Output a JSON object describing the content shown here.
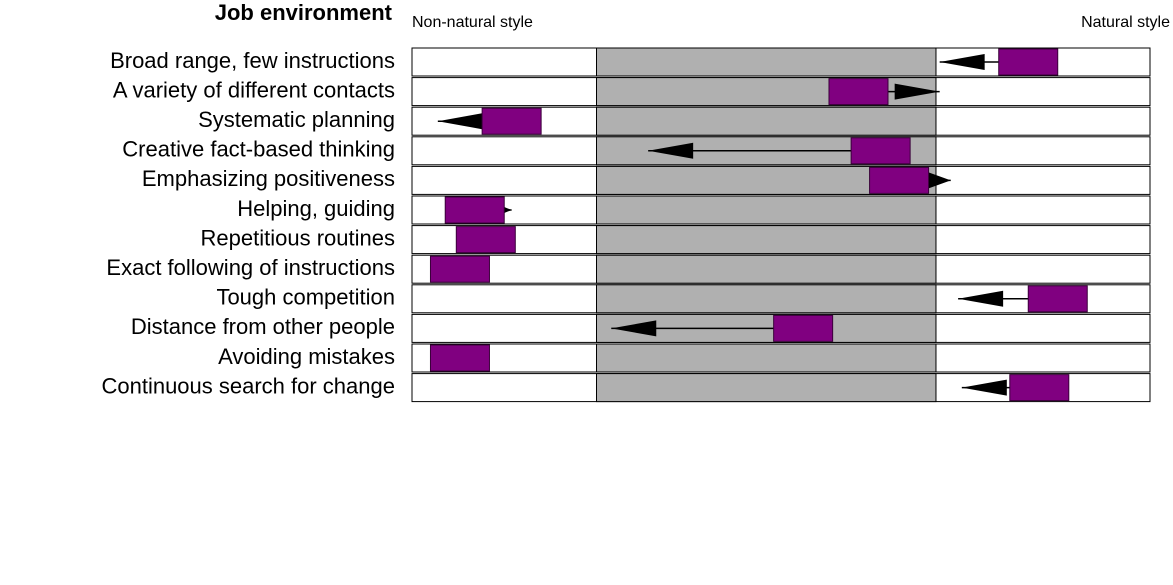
{
  "chart_data": {
    "type": "profile",
    "title": "Job environment",
    "left_label": "Non-natural style",
    "right_label": "Natural style",
    "categories": [
      "Broad range, few instructions",
      "A variety of different contacts",
      "Systematic planning",
      "Creative fact-based thinking",
      "Emphasizing positiveness",
      "Helping, guiding",
      "Repetitious routines",
      "Exact following of instructions",
      "Tough competition",
      "Distance from other people",
      "Avoiding mistakes",
      "Continuous search for change"
    ],
    "values": [
      83.5,
      60.5,
      13.5,
      63.5,
      66,
      8.5,
      10,
      6.5,
      87.5,
      53,
      6.5,
      85
    ],
    "arrow_values": [
      71.5,
      71.5,
      3.5,
      32,
      73,
      13.5,
      null,
      null,
      74,
      27,
      null,
      74.5
    ],
    "band": [
      25,
      71
    ],
    "xlim": [
      0,
      100
    ],
    "color": "#800080",
    "band_color": "#b0b0b0"
  }
}
